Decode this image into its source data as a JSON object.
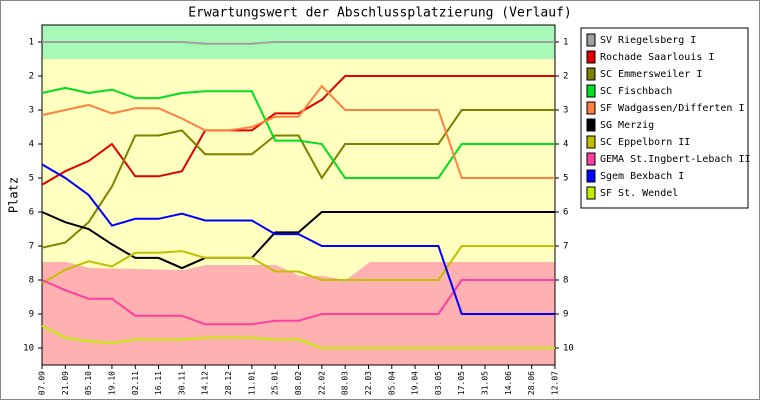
{
  "chart_data": {
    "type": "line",
    "title": "Erwartungswert der Abschlussplatzierung (Verlauf)",
    "y_label": "Platz",
    "categories": [
      "07.09",
      "21.09",
      "05.10",
      "19.10",
      "02.11",
      "16.11",
      "30.11",
      "14.12",
      "28.12",
      "11.01",
      "25.01",
      "08.02",
      "22.02",
      "08.03",
      "22.03",
      "05.04",
      "19.04",
      "03.05",
      "17.05",
      "31.05",
      "14.06",
      "28.06",
      "12.07"
    ],
    "ylim": [
      10.5,
      0.5
    ],
    "yticks": [
      1,
      2,
      3,
      4,
      5,
      6,
      7,
      8,
      9,
      10
    ],
    "grid": false,
    "legend": "right-outside",
    "series": [
      {
        "name": "SV Riegelsberg I",
        "color": "#a0a0a0",
        "values": [
          1,
          1,
          1,
          1,
          1,
          1,
          1,
          1.05,
          1.05,
          1.05,
          1,
          1,
          1,
          1,
          1,
          1,
          1,
          1,
          1,
          1,
          1,
          1,
          1
        ]
      },
      {
        "name": "Rochade Saarlouis I",
        "color": "#e00000",
        "values": [
          5.2,
          4.8,
          4.5,
          4.0,
          4.95,
          4.95,
          4.8,
          3.6,
          3.6,
          3.6,
          3.1,
          3.1,
          2.7,
          2,
          2,
          2,
          2,
          2,
          2,
          2,
          2,
          2,
          2
        ]
      },
      {
        "name": "SC Emmersweiler I",
        "color": "#808000",
        "values": [
          7.05,
          6.9,
          6.3,
          5.25,
          3.75,
          3.75,
          3.6,
          4.3,
          4.3,
          4.3,
          3.75,
          3.75,
          5.0,
          4,
          4,
          4,
          4,
          4,
          3,
          3,
          3,
          3,
          3
        ]
      },
      {
        "name": "SC Fischbach",
        "color": "#00e020",
        "values": [
          2.5,
          2.35,
          2.5,
          2.4,
          2.65,
          2.65,
          2.5,
          2.45,
          2.45,
          2.45,
          3.9,
          3.9,
          4.0,
          5,
          5,
          5,
          5,
          5,
          4,
          4,
          4,
          4,
          4
        ]
      },
      {
        "name": "SF Wadgassen/Differten I",
        "color": "#ff8040",
        "values": [
          3.15,
          3.0,
          2.85,
          3.1,
          2.95,
          2.95,
          3.25,
          3.6,
          3.6,
          3.5,
          3.2,
          3.2,
          2.3,
          3,
          3,
          3,
          3,
          3,
          5,
          5,
          5,
          5,
          5
        ]
      },
      {
        "name": "SG Merzig",
        "color": "#000000",
        "values": [
          6,
          6.3,
          6.5,
          6.95,
          7.35,
          7.35,
          7.65,
          7.35,
          7.35,
          7.35,
          6.6,
          6.6,
          6,
          6,
          6,
          6,
          6,
          6,
          6,
          6,
          6,
          6,
          6
        ]
      },
      {
        "name": "SC Eppelborn II",
        "color": "#c0c000",
        "values": [
          8.1,
          7.7,
          7.45,
          7.6,
          7.2,
          7.2,
          7.15,
          7.35,
          7.35,
          7.35,
          7.75,
          7.75,
          8,
          8,
          8,
          8,
          8,
          8,
          7,
          7,
          7,
          7,
          7
        ]
      },
      {
        "name": "GEMA St.Ingbert-Lebach II",
        "color": "#ff40a0",
        "values": [
          8.0,
          8.3,
          8.55,
          8.55,
          9.05,
          9.05,
          9.05,
          9.3,
          9.3,
          9.3,
          9.2,
          9.2,
          9,
          9,
          9,
          9,
          9,
          9,
          8,
          8,
          8,
          8,
          8
        ]
      },
      {
        "name": "Sgem Bexbach I",
        "color": "#0000ff",
        "values": [
          4.6,
          5.0,
          5.5,
          6.4,
          6.2,
          6.2,
          6.05,
          6.25,
          6.25,
          6.25,
          6.65,
          6.65,
          7,
          7,
          7,
          7,
          7,
          7,
          9,
          9,
          9,
          9,
          9
        ]
      },
      {
        "name": "SF St. Wendel",
        "color": "#c0f000",
        "values": [
          9.35,
          9.7,
          9.8,
          9.85,
          9.75,
          9.75,
          9.75,
          9.7,
          9.7,
          9.7,
          9.75,
          9.75,
          10,
          10,
          10,
          10,
          10,
          10,
          10,
          10,
          10,
          10,
          10
        ]
      }
    ]
  }
}
